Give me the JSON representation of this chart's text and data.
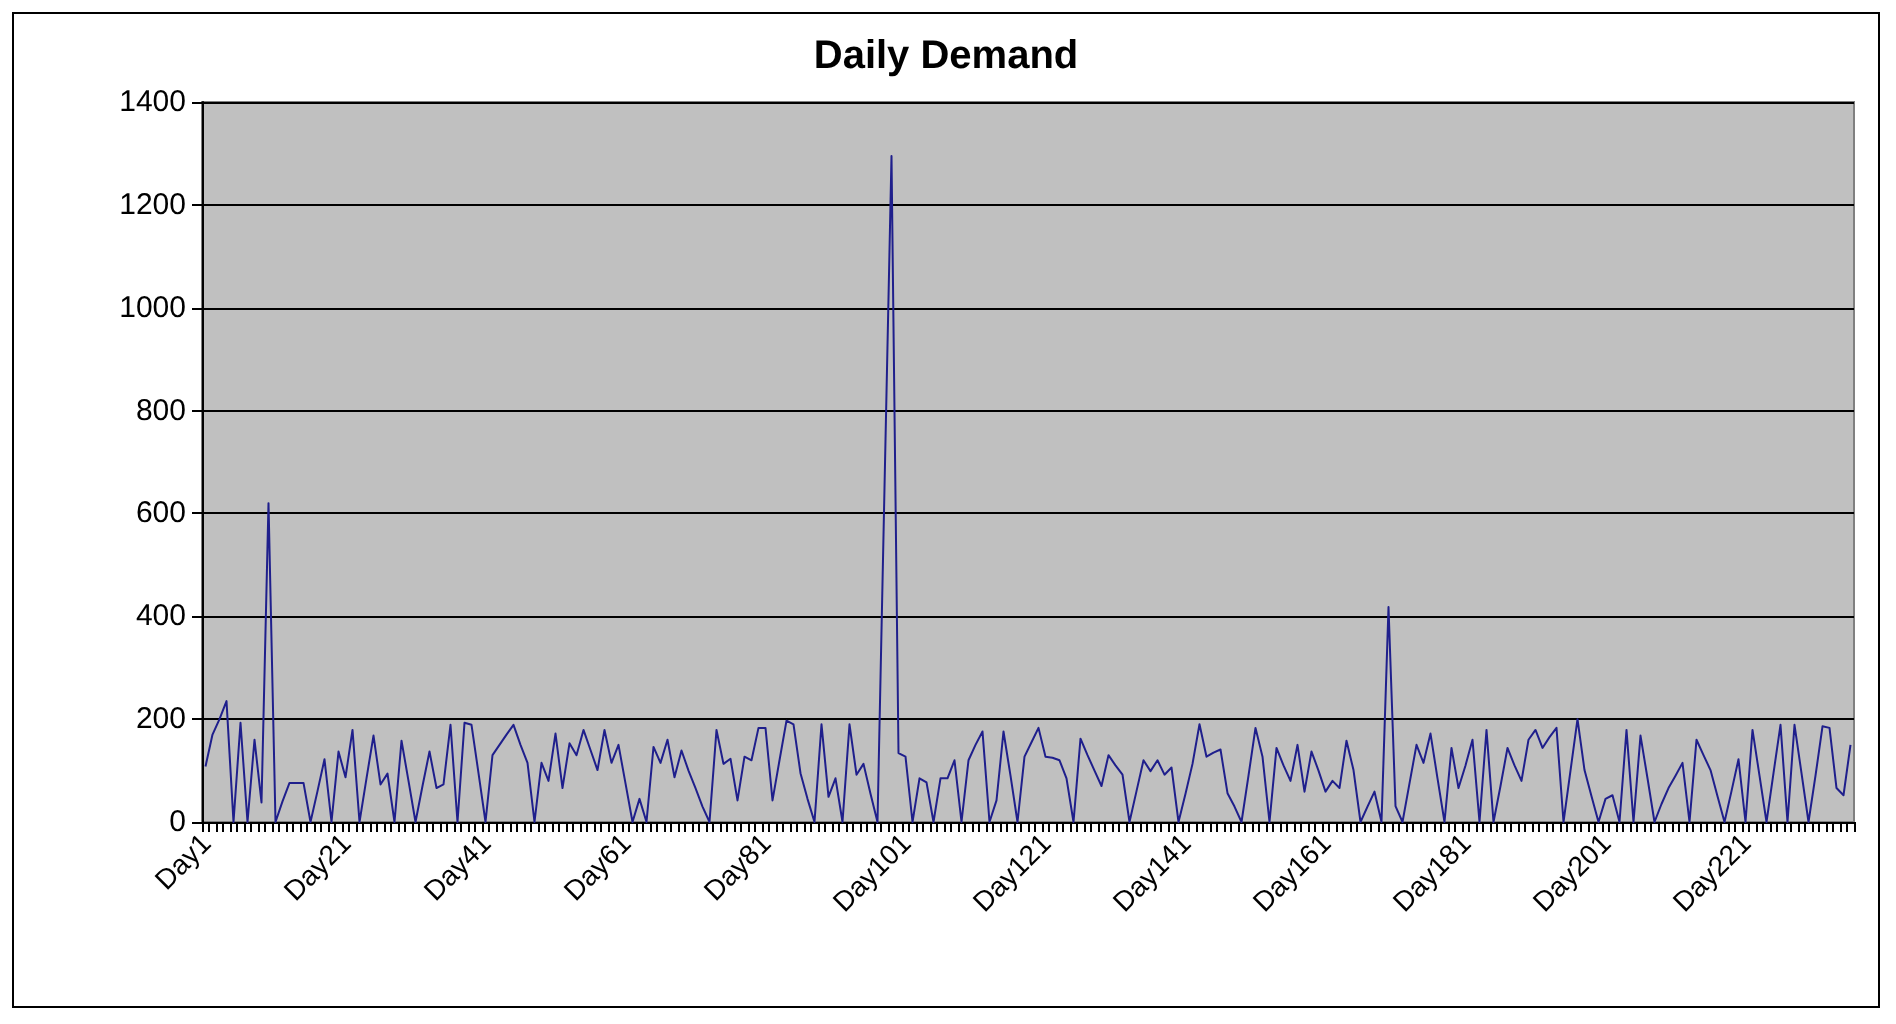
{
  "chart_data": {
    "type": "line",
    "title": "Daily Demand",
    "categories": [
      "Day1",
      null,
      null,
      null,
      null,
      null,
      null,
      null,
      null,
      null,
      null,
      null,
      null,
      null,
      null,
      null,
      null,
      null,
      null,
      null,
      "Day21",
      null,
      null,
      null,
      null,
      null,
      null,
      null,
      null,
      null,
      null,
      null,
      null,
      null,
      null,
      null,
      null,
      null,
      null,
      null,
      "Day41",
      null,
      null,
      null,
      null,
      null,
      null,
      null,
      null,
      null,
      null,
      null,
      null,
      null,
      null,
      null,
      null,
      null,
      null,
      null,
      "Day61",
      null,
      null,
      null,
      null,
      null,
      null,
      null,
      null,
      null,
      null,
      null,
      null,
      null,
      null,
      null,
      null,
      null,
      null,
      null,
      "Day81",
      null,
      null,
      null,
      null,
      null,
      null,
      null,
      null,
      null,
      null,
      null,
      null,
      null,
      null,
      null,
      null,
      null,
      null,
      null,
      "Day101",
      null,
      null,
      null,
      null,
      null,
      null,
      null,
      null,
      null,
      null,
      null,
      null,
      null,
      null,
      null,
      null,
      null,
      null,
      null,
      "Day121",
      null,
      null,
      null,
      null,
      null,
      null,
      null,
      null,
      null,
      null,
      null,
      null,
      null,
      null,
      null,
      null,
      null,
      null,
      null,
      "Day141",
      null,
      null,
      null,
      null,
      null,
      null,
      null,
      null,
      null,
      null,
      null,
      null,
      null,
      null,
      null,
      null,
      null,
      null,
      null,
      "Day161",
      null,
      null,
      null,
      null,
      null,
      null,
      null,
      null,
      null,
      null,
      null,
      null,
      null,
      null,
      null,
      null,
      null,
      null,
      null,
      "Day181",
      null,
      null,
      null,
      null,
      null,
      null,
      null,
      null,
      null,
      null,
      null,
      null,
      null,
      null,
      null,
      null,
      null,
      null,
      null,
      "Day201",
      null,
      null,
      null,
      null,
      null,
      null,
      null,
      null,
      null,
      null,
      null,
      null,
      null,
      null,
      null,
      null,
      null,
      null,
      null,
      "Day221",
      null,
      null,
      null,
      null,
      null,
      null,
      null,
      null,
      null,
      null,
      null,
      null,
      null,
      null,
      null
    ],
    "values": [
      108,
      170,
      200,
      235,
      0,
      193,
      0,
      160,
      38,
      620,
      0,
      40,
      76,
      76,
      76,
      0,
      60,
      122,
      0,
      137,
      87,
      179,
      0,
      85,
      168,
      73,
      94,
      0,
      158,
      80,
      0,
      70,
      137,
      66,
      73,
      189,
      0,
      193,
      189,
      95,
      0,
      130,
      150,
      170,
      189,
      150,
      115,
      0,
      115,
      80,
      172,
      66,
      153,
      130,
      179,
      140,
      101,
      179,
      115,
      150,
      75,
      0,
      45,
      0,
      146,
      115,
      160,
      87,
      139,
      100,
      66,
      30,
      0,
      179,
      113,
      123,
      42,
      127,
      120,
      183,
      183,
      42,
      120,
      197,
      190,
      95,
      45,
      0,
      190,
      49,
      85,
      0,
      190,
      92,
      113,
      55,
      0,
      650,
      1295,
      134,
      127,
      0,
      85,
      77,
      0,
      85,
      85,
      120,
      0,
      120,
      150,
      176,
      0,
      42,
      176,
      90,
      0,
      127,
      155,
      183,
      127,
      125,
      120,
      85,
      0,
      162,
      130,
      100,
      70,
      130,
      110,
      92,
      0,
      60,
      120,
      99,
      120,
      92,
      106,
      0,
      55,
      113,
      190,
      127,
      135,
      141,
      56,
      30,
      0,
      90,
      183,
      127,
      0,
      144,
      110,
      80,
      150,
      59,
      137,
      100,
      59,
      80,
      66,
      158,
      101,
      0,
      30,
      59,
      0,
      418,
      31,
      0,
      75,
      150,
      115,
      172,
      85,
      0,
      144,
      66,
      110,
      160,
      0,
      179,
      0,
      70,
      144,
      110,
      80,
      160,
      179,
      144,
      165,
      183,
      0,
      100,
      200,
      101,
      50,
      0,
      45,
      52,
      0,
      179,
      0,
      168,
      85,
      0,
      35,
      66,
      90,
      115,
      0,
      160,
      130,
      101,
      50,
      0,
      60,
      122,
      0,
      179,
      90,
      0,
      95,
      189,
      0,
      189,
      95,
      0,
      90,
      186,
      183,
      66,
      52,
      150
    ],
    "color": "#1f1f8c",
    "ylim": [
      0,
      1400
    ],
    "yticks": [
      0,
      200,
      400,
      600,
      800,
      1000,
      1200,
      1400
    ],
    "grid": "y"
  }
}
